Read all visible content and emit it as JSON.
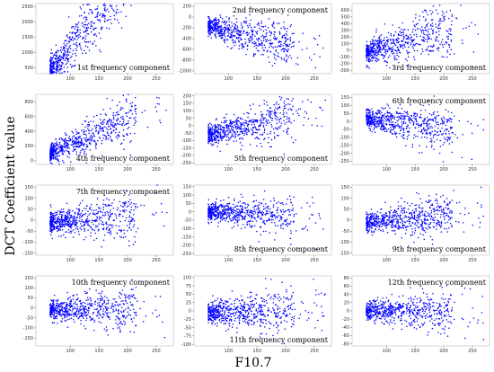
{
  "figure": {
    "ylabel": "DCT Coefficient value",
    "xlabel": "F10.7"
  },
  "chart_data": [
    {
      "type": "scatter",
      "title": "1st frequency component",
      "xlim": [
        40,
        280
      ],
      "ylim": [
        300,
        2600
      ],
      "xticks": [
        100,
        150,
        200,
        250
      ],
      "yticks": [
        500,
        1000,
        1500,
        2000,
        2500
      ],
      "title_pos": "bottom-right",
      "trend": {
        "base": 500,
        "slope": 22,
        "spread": 420,
        "n": 650
      },
      "color": "#0000ff"
    },
    {
      "type": "scatter",
      "title": "2nd frequency component",
      "xlim": [
        40,
        280
      ],
      "ylim": [
        -1050,
        250
      ],
      "xticks": [
        100,
        150,
        200,
        250
      ],
      "yticks": [
        200,
        0,
        -200,
        -400,
        -600,
        -800,
        -1000
      ],
      "title_pos": "top-right",
      "trend": {
        "base": -180,
        "slope": -2.5,
        "spread": 150,
        "n": 650
      },
      "color": "#0000ff"
    },
    {
      "type": "scatter",
      "title": "3rd frequency component",
      "xlim": [
        40,
        280
      ],
      "ylim": [
        -350,
        700
      ],
      "xticks": [
        100,
        150,
        200,
        250
      ],
      "yticks": [
        600,
        500,
        400,
        300,
        200,
        100,
        0,
        -100,
        -200,
        -300
      ],
      "title_pos": "bottom-right",
      "trend": {
        "base": -20,
        "slope": 2.4,
        "spread": 140,
        "n": 650
      },
      "color": "#0000ff"
    },
    {
      "type": "scatter",
      "title": "4th frequency component",
      "xlim": [
        40,
        280
      ],
      "ylim": [
        -50,
        900
      ],
      "xticks": [
        100,
        150,
        200,
        250
      ],
      "yticks": [
        0,
        200,
        400,
        600,
        800
      ],
      "title_pos": "bottom-right",
      "trend": {
        "base": 120,
        "slope": 3.3,
        "spread": 110,
        "n": 650
      },
      "color": "#0000ff"
    },
    {
      "type": "scatter",
      "title": "5th frequency component",
      "xlim": [
        40,
        280
      ],
      "ylim": [
        -260,
        210
      ],
      "xticks": [
        100,
        150,
        200,
        250
      ],
      "yticks": [
        200,
        150,
        100,
        50,
        0,
        -50,
        -100,
        -150,
        -200,
        -250
      ],
      "title_pos": "bottom-right",
      "trend": {
        "base": -60,
        "slope": 0.9,
        "spread": 55,
        "n": 650
      },
      "color": "#0000ff"
    },
    {
      "type": "scatter",
      "title": "6th frequency component",
      "xlim": [
        40,
        280
      ],
      "ylim": [
        -270,
        170
      ],
      "xticks": [
        100,
        150,
        200,
        250
      ],
      "yticks": [
        150,
        100,
        50,
        0,
        -50,
        -100,
        -150,
        -200,
        -250
      ],
      "title_pos": "top-right",
      "trend": {
        "base": 20,
        "slope": -0.55,
        "spread": 50,
        "n": 650
      },
      "color": "#0000ff"
    },
    {
      "type": "scatter",
      "title": "7th frequency component",
      "xlim": [
        40,
        280
      ],
      "ylim": [
        -160,
        160
      ],
      "xticks": [
        100,
        150,
        200,
        250
      ],
      "yticks": [
        150,
        100,
        50,
        0,
        -50,
        -100,
        -150
      ],
      "title_pos": "top-right",
      "trend": {
        "base": -10,
        "slope": 0.18,
        "spread": 40,
        "n": 650
      },
      "color": "#0000ff"
    },
    {
      "type": "scatter",
      "title": "8th frequency component",
      "xlim": [
        40,
        280
      ],
      "ylim": [
        -260,
        160
      ],
      "xticks": [
        100,
        150,
        200,
        250
      ],
      "yticks": [
        150,
        100,
        50,
        0,
        -50,
        -100,
        -150,
        -200,
        -250
      ],
      "title_pos": "bottom-right",
      "trend": {
        "base": 5,
        "slope": -0.2,
        "spread": 42,
        "n": 650
      },
      "color": "#0000ff"
    },
    {
      "type": "scatter",
      "title": "9th frequency component",
      "xlim": [
        40,
        280
      ],
      "ylim": [
        -160,
        160
      ],
      "xticks": [
        100,
        150,
        200,
        250
      ],
      "yticks": [
        150,
        100,
        50,
        0,
        -50,
        -100,
        -150
      ],
      "title_pos": "bottom-right",
      "trend": {
        "base": -10,
        "slope": 0.28,
        "spread": 35,
        "n": 650
      },
      "color": "#0000ff"
    },
    {
      "type": "scatter",
      "title": "10th frequency component",
      "xlim": [
        40,
        280
      ],
      "ylim": [
        -190,
        160
      ],
      "xticks": [
        100,
        150,
        200,
        250
      ],
      "yticks": [
        150,
        100,
        50,
        0,
        -50,
        -100,
        -150
      ],
      "title_pos": "top-right",
      "trend": {
        "base": -10,
        "slope": 0.05,
        "spread": 38,
        "n": 650
      },
      "color": "#0000ff"
    },
    {
      "type": "scatter",
      "title": "11th frequency component",
      "xlim": [
        40,
        280
      ],
      "ylim": [
        -105,
        105
      ],
      "xticks": [
        100,
        150,
        200,
        250
      ],
      "yticks": [
        100,
        75,
        50,
        25,
        0,
        -25,
        -50,
        -75,
        -100
      ],
      "title_pos": "bottom-right",
      "trend": {
        "base": -5,
        "slope": 0.05,
        "spread": 27,
        "n": 650
      },
      "color": "#0000ff"
    },
    {
      "type": "scatter",
      "title": "12th frequency component",
      "xlim": [
        40,
        280
      ],
      "ylim": [
        -85,
        85
      ],
      "xticks": [
        100,
        150,
        200,
        250
      ],
      "yticks": [
        80,
        60,
        40,
        20,
        0,
        -20,
        -40,
        -60,
        -80
      ],
      "title_pos": "top-right",
      "trend": {
        "base": 0,
        "slope": 0.0,
        "spread": 18,
        "n": 650
      },
      "color": "#0000ff"
    }
  ]
}
